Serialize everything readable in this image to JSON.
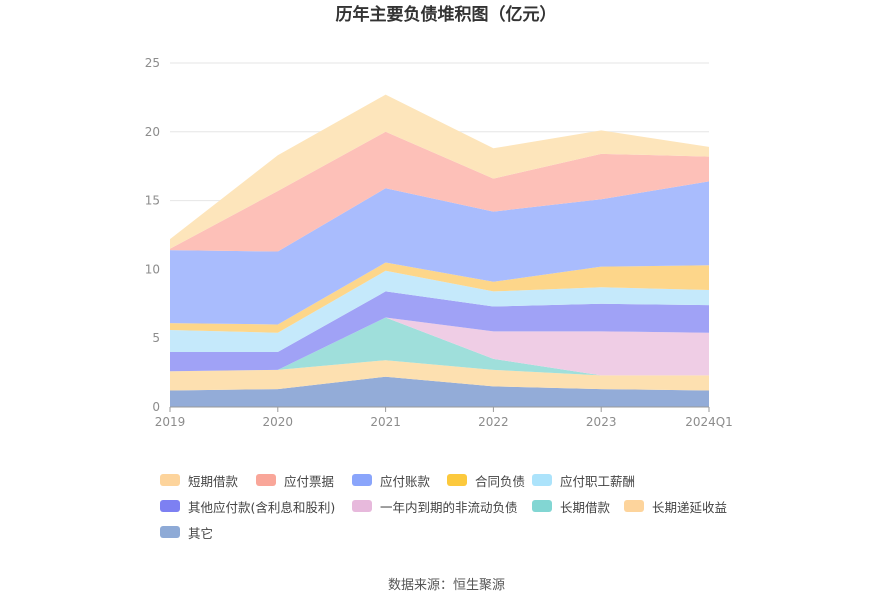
{
  "chart_data": {
    "type": "area",
    "stacked": true,
    "title": "历年主要负债堆积图（亿元）",
    "categories": [
      "2019",
      "2020",
      "2021",
      "2022",
      "2023",
      "2024Q1"
    ],
    "ylim": [
      0,
      25
    ],
    "yticks": [
      0,
      5,
      10,
      15,
      20,
      25
    ],
    "grid": true,
    "legend_position": "bottom",
    "series": [
      {
        "name": "其它",
        "color": "#93acd8",
        "values": [
          1.2,
          1.3,
          2.2,
          1.5,
          1.3,
          1.2
        ]
      },
      {
        "name": "长期递延收益",
        "color": "#fde0b0",
        "values": [
          1.4,
          1.4,
          1.2,
          1.2,
          1.0,
          1.1
        ]
      },
      {
        "name": "长期借款",
        "color": "#9fdfdb",
        "values": [
          0.0,
          0.0,
          3.1,
          0.8,
          0.0,
          0.0
        ]
      },
      {
        "name": "一年内到期的非流动负债",
        "color": "#efcde5",
        "values": [
          0.0,
          0.0,
          0.0,
          2.0,
          3.2,
          3.1
        ]
      },
      {
        "name": "其他应付款(含利息和股利)",
        "color": "#a0a2f6",
        "values": [
          1.4,
          1.3,
          1.9,
          1.8,
          2.0,
          2.0
        ]
      },
      {
        "name": "应付职工薪酬",
        "color": "#c5e9fb",
        "values": [
          1.6,
          1.4,
          1.5,
          1.1,
          1.2,
          1.1
        ]
      },
      {
        "name": "合同负债",
        "color": "#fdd68a",
        "values": [
          0.5,
          0.6,
          0.6,
          0.7,
          1.5,
          1.8
        ]
      },
      {
        "name": "应付账款",
        "color": "#a9bcfd",
        "values": [
          5.3,
          5.3,
          5.4,
          5.1,
          4.9,
          6.1
        ]
      },
      {
        "name": "应付票据",
        "color": "#fdc0b8",
        "values": [
          0.1,
          4.4,
          4.1,
          2.4,
          3.3,
          1.8
        ]
      },
      {
        "name": "短期借款",
        "color": "#fde5bb",
        "values": [
          0.7,
          2.6,
          2.7,
          2.2,
          1.7,
          0.7
        ]
      }
    ]
  },
  "legend": [
    {
      "label": "短期借款",
      "color": "#fdd49c"
    },
    {
      "label": "应付票据",
      "color": "#f9a699"
    },
    {
      "label": "应付账款",
      "color": "#8aa5fb"
    },
    {
      "label": "合同负债",
      "color": "#fcc93d"
    },
    {
      "label": "应付职工薪酬",
      "color": "#ace3fb"
    },
    {
      "label": "其他应付款(含利息和股利)",
      "color": "#7d80f2"
    },
    {
      "label": "一年内到期的非流动负债",
      "color": "#e7b9dc"
    },
    {
      "label": "长期借款",
      "color": "#82d6d3"
    },
    {
      "label": "长期递延收益",
      "color": "#fdd49c"
    },
    {
      "label": "其它",
      "color": "#8eaad6"
    }
  ],
  "source": "数据来源：恒生聚源"
}
